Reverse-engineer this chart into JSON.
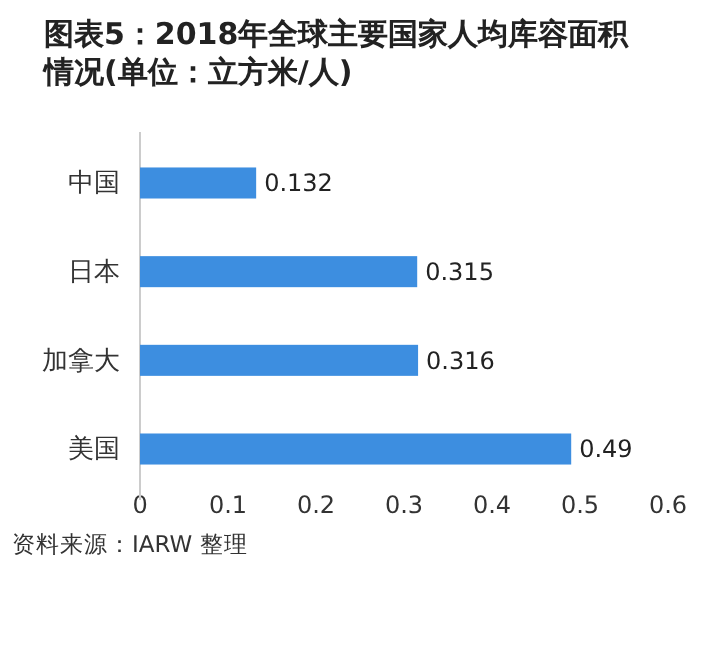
{
  "chart_data": {
    "type": "bar",
    "orientation": "horizontal",
    "title": "图表5：2018年全球主要国家人均库容面积情况(单位：立方米/人)",
    "categories": [
      "中国",
      "日本",
      "加拿大",
      "美国"
    ],
    "values": [
      0.132,
      0.315,
      0.316,
      0.49
    ],
    "color": "#3d8ee0",
    "xlim": [
      0,
      0.6
    ],
    "xticks": [
      0,
      0.1,
      0.2,
      0.3,
      0.4,
      0.5,
      0.6
    ],
    "data_labels": true,
    "grid": false,
    "annotations": [
      "资料来源：IARW 整理"
    ]
  }
}
